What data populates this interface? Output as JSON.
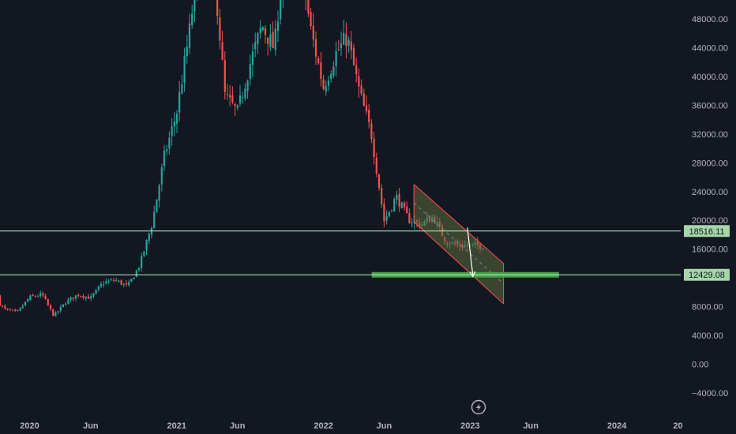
{
  "chart_data": {
    "type": "candlestick",
    "title": "",
    "ylim": [
      -6000,
      50400
    ],
    "y_ticks": [
      48000,
      44000,
      40000,
      36000,
      32000,
      28000,
      24000,
      20000,
      16000,
      12000,
      8000,
      4000,
      0,
      -4000
    ],
    "y_tick_labels": [
      "48000.00",
      "44000.00",
      "40000.00",
      "36000.00",
      "32000.00",
      "28000.00",
      "24000.00",
      "20000.00",
      "16000.00",
      "",
      "8000.00",
      "4000.00",
      "0.00",
      "−4000.00"
    ],
    "x_ticks": [
      "2020-01-01",
      "2020-06-01",
      "2021-01-01",
      "2021-06-01",
      "2022-01-01",
      "2022-06-01",
      "2023-01-01",
      "2023-06-01",
      "2024-01-01",
      "2024-06-01"
    ],
    "x_tick_labels": [
      "2020",
      "Jun",
      "2021",
      "Jun",
      "2022",
      "Jun",
      "2023",
      "Jun",
      "2024",
      "20"
    ],
    "series": [
      {
        "dates": [
          "2019-10-01",
          "2019-11-01",
          "2019-12-01",
          "2020-01-01",
          "2020-02-01",
          "2020-03-01",
          "2020-04-01",
          "2020-05-01",
          "2020-06-01",
          "2020-07-01",
          "2020-08-01",
          "2020-09-01",
          "2020-10-01",
          "2020-11-01",
          "2020-12-01",
          "2021-01-01",
          "2021-02-01",
          "2021-03-01",
          "2021-04-01",
          "2021-05-01",
          "2021-06-01",
          "2021-07-01",
          "2021-08-01",
          "2021-09-01",
          "2021-10-01",
          "2021-11-01",
          "2021-12-01",
          "2022-01-01",
          "2022-02-01",
          "2022-03-01",
          "2022-04-01",
          "2022-05-01",
          "2022-06-01",
          "2022-07-01",
          "2022-08-01",
          "2022-09-01",
          "2022-10-01",
          "2022-11-01",
          "2022-12-01"
        ],
        "close": [
          9500,
          7600,
          7200,
          9300,
          9700,
          6700,
          8700,
          9700,
          9200,
          11300,
          11700,
          10800,
          13800,
          19600,
          28900,
          35000,
          46000,
          58000,
          57000,
          37300,
          35000,
          41500,
          47100,
          43800,
          61300,
          57000,
          46300,
          38500,
          43200,
          45500,
          37700,
          31800,
          19900,
          23300,
          20100,
          19400,
          20500,
          17100,
          16500
        ]
      }
    ],
    "levels": [
      {
        "value": 18516.11,
        "label": "18516.11"
      },
      {
        "value": 12429.08,
        "label": "12429.08"
      }
    ],
    "channel": {
      "upper": [
        {
          "date": "2022-08-14",
          "value": 25000
        },
        {
          "date": "2023-03-25",
          "value": 14000
        }
      ],
      "lower": [
        {
          "date": "2022-08-14",
          "value": 19800
        },
        {
          "date": "2023-03-25",
          "value": 8400
        }
      ]
    },
    "projection_arrow": [
      {
        "date": "2022-12-25",
        "value": 19000
      },
      {
        "date": "2023-01-08",
        "value": 12200
      }
    ],
    "support_zone": {
      "date_from": "2022-05-01",
      "date_to": "2023-08-10",
      "value": 12429.08
    },
    "colors": {
      "background": "#131722",
      "up": "#26a69a",
      "down": "#ef5350",
      "level_line": "#b9f6ca",
      "level_badge": "#a5d6a7",
      "support_zone": "#43a047",
      "channel_fill": "#5d6a3a",
      "channel_edge": "#ff5252",
      "grid": "#1e222d",
      "text": "#b2b5be"
    },
    "grid": false,
    "icons": {
      "replay": "lightning-icon"
    }
  }
}
